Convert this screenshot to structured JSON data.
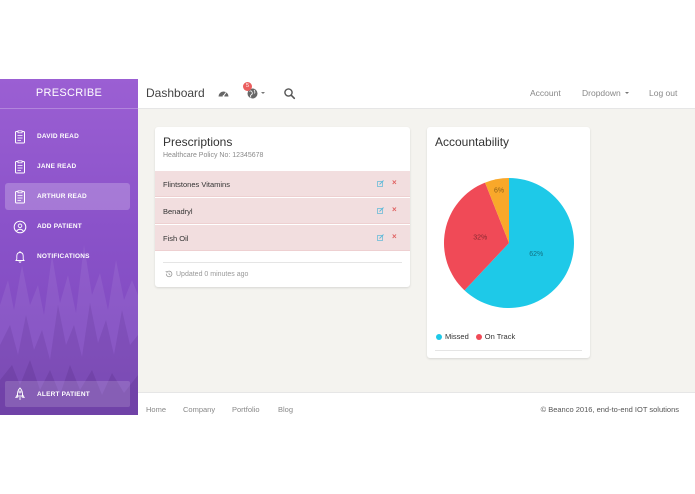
{
  "sidebar": {
    "brand": "PRESCRIBE",
    "items": [
      {
        "label": "DAVID READ",
        "icon": "clipboard-icon",
        "active": false
      },
      {
        "label": "JANE READ",
        "icon": "clipboard-icon",
        "active": false
      },
      {
        "label": "ARTHUR READ",
        "icon": "clipboard-icon",
        "active": true
      },
      {
        "label": "ADD PATIENT",
        "icon": "user-add-icon",
        "active": false
      },
      {
        "label": "NOTIFICATIONS",
        "icon": "bell-icon",
        "active": false
      }
    ],
    "alert": {
      "label": "ALERT PATIENT",
      "icon": "rocket-icon"
    },
    "gradient": [
      "#9b5fd3",
      "#7a47bb"
    ]
  },
  "topbar": {
    "title": "Dashboard",
    "notification_count": "5",
    "links": {
      "account": "Account",
      "dropdown": "Dropdown",
      "logout": "Log out"
    }
  },
  "prescriptions": {
    "title": "Prescriptions",
    "subtitle": "Healthcare Policy No: 12345678",
    "rows": [
      "Flintstones Vitamins",
      "Benadryl",
      "Fish Oil"
    ],
    "updated": "Updated 0 minutes ago",
    "row_color": "#f2dedf",
    "delete_symbol": "×"
  },
  "accountability": {
    "title": "Accountability",
    "chart_data": {
      "type": "pie",
      "slices": [
        {
          "label": "62%",
          "value": 62,
          "color": "#1ec9e8"
        },
        {
          "label": "32%",
          "value": 32,
          "color": "#f04a57"
        },
        {
          "label": "6%",
          "value": 6,
          "color": "#f9a82a"
        }
      ],
      "legend": [
        {
          "name": "Missed",
          "color": "#1ec9e8"
        },
        {
          "name": "On Track",
          "color": "#f04a57"
        }
      ],
      "legend_position": "bottom-left"
    }
  },
  "footer": {
    "links": [
      "Home",
      "Company",
      "Portfolio",
      "Blog"
    ],
    "copyright": "© Beanco 2016, end-to-end IOT solutions"
  }
}
